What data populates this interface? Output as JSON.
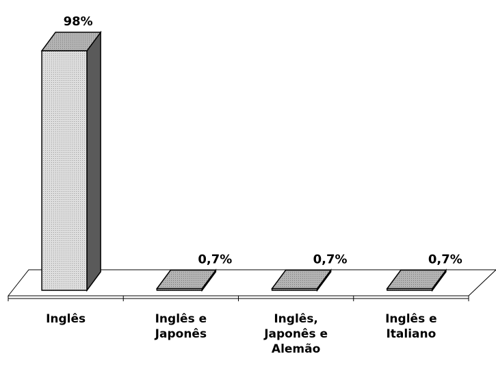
{
  "chart_data": {
    "type": "bar",
    "categories": [
      [
        "Inglês"
      ],
      [
        "Inglês e",
        "Japonês"
      ],
      [
        "Inglês,",
        "Japonês e",
        "Alemão"
      ],
      [
        "Inglês e",
        "Italiano"
      ]
    ],
    "values": [
      98,
      0.7,
      0.7,
      0.7
    ],
    "data_labels": [
      "98%",
      "0,7%",
      "0,7%",
      "0,7%"
    ],
    "ylim": [
      0,
      100
    ],
    "grid": false,
    "legend": "none",
    "style": "3d-column",
    "colors": {
      "bar_front": "#d4d4d4",
      "bar_side": "#5a5a5a",
      "bar_top": "#a8a8a8",
      "floor": "#ffffff",
      "axis": "#000000"
    }
  }
}
